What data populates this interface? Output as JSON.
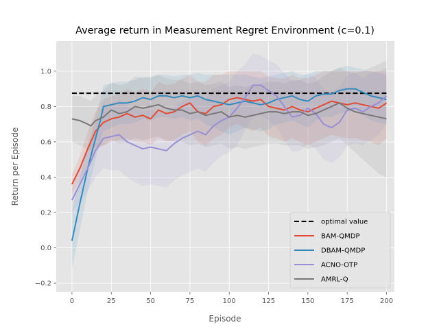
{
  "chart_data": {
    "type": "line",
    "title": "Average return in Measurement Regret Environment (c=0.1)",
    "xlabel": "Episode",
    "ylabel": "Return per Episode",
    "xlim": [
      -10,
      205
    ],
    "ylim": [
      -0.25,
      1.17
    ],
    "xticks": [
      0,
      25,
      50,
      75,
      100,
      125,
      150,
      175,
      200
    ],
    "yticks": [
      -0.2,
      0.0,
      0.2,
      0.4,
      0.6,
      0.8,
      1.0
    ],
    "xtick_labels": [
      "0",
      "25",
      "50",
      "75",
      "100",
      "125",
      "150",
      "175",
      "200"
    ],
    "ytick_labels": [
      "−0.2",
      "0.0",
      "0.2",
      "0.4",
      "0.6",
      "0.8",
      "1.0"
    ],
    "grid": true,
    "legend_position": "lower-right",
    "reference_line": {
      "name": "optimal value",
      "y": 0.875,
      "color": "#000000"
    },
    "series": [
      {
        "name": "BAM-QMDP",
        "color": "#e24a33",
        "x": [
          0,
          5,
          10,
          15,
          20,
          25,
          30,
          35,
          40,
          45,
          50,
          55,
          60,
          65,
          70,
          75,
          80,
          85,
          90,
          95,
          100,
          105,
          110,
          115,
          120,
          125,
          130,
          135,
          140,
          145,
          150,
          155,
          160,
          165,
          170,
          175,
          180,
          185,
          190,
          195,
          200
        ],
        "y": [
          0.36,
          0.45,
          0.56,
          0.66,
          0.71,
          0.73,
          0.74,
          0.76,
          0.74,
          0.75,
          0.73,
          0.78,
          0.76,
          0.77,
          0.8,
          0.82,
          0.77,
          0.76,
          0.8,
          0.81,
          0.84,
          0.85,
          0.84,
          0.83,
          0.84,
          0.8,
          0.79,
          0.78,
          0.8,
          0.78,
          0.77,
          0.79,
          0.81,
          0.83,
          0.82,
          0.81,
          0.82,
          0.81,
          0.8,
          0.79,
          0.82
        ],
        "lower": [
          0.3,
          0.38,
          0.46,
          0.55,
          0.58,
          0.6,
          0.61,
          0.62,
          0.6,
          0.6,
          0.58,
          0.62,
          0.6,
          0.61,
          0.64,
          0.66,
          0.6,
          0.58,
          0.62,
          0.64,
          0.68,
          0.7,
          0.68,
          0.66,
          0.68,
          0.63,
          0.62,
          0.6,
          0.62,
          0.6,
          0.58,
          0.6,
          0.62,
          0.64,
          0.63,
          0.62,
          0.62,
          0.61,
          0.6,
          0.58,
          0.62
        ],
        "upper": [
          0.42,
          0.52,
          0.66,
          0.77,
          0.84,
          0.86,
          0.87,
          0.9,
          0.88,
          0.9,
          0.88,
          0.94,
          0.92,
          0.93,
          0.96,
          0.98,
          0.94,
          0.94,
          0.98,
          0.98,
          1.0,
          1.0,
          1.0,
          1.0,
          1.0,
          0.97,
          0.96,
          0.96,
          0.98,
          0.96,
          0.96,
          0.98,
          1.0,
          1.0,
          1.0,
          1.0,
          1.0,
          1.0,
          1.0,
          1.0,
          1.0
        ]
      },
      {
        "name": "DBAM-QMDP",
        "color": "#348abd",
        "x": [
          0,
          5,
          10,
          15,
          18,
          20,
          25,
          30,
          35,
          40,
          45,
          50,
          55,
          60,
          65,
          70,
          75,
          80,
          85,
          90,
          95,
          100,
          105,
          110,
          115,
          120,
          125,
          130,
          135,
          140,
          145,
          150,
          155,
          160,
          165,
          170,
          175,
          180,
          185,
          190,
          195,
          200
        ],
        "y": [
          0.04,
          0.25,
          0.45,
          0.62,
          0.72,
          0.8,
          0.81,
          0.82,
          0.82,
          0.83,
          0.85,
          0.84,
          0.86,
          0.86,
          0.85,
          0.86,
          0.85,
          0.86,
          0.84,
          0.83,
          0.82,
          0.81,
          0.82,
          0.83,
          0.82,
          0.81,
          0.82,
          0.84,
          0.85,
          0.86,
          0.84,
          0.83,
          0.86,
          0.87,
          0.87,
          0.89,
          0.9,
          0.9,
          0.88,
          0.86,
          0.85,
          0.84
        ],
        "lower": [
          -0.12,
          0.1,
          0.32,
          0.5,
          0.6,
          0.66,
          0.68,
          0.7,
          0.7,
          0.71,
          0.73,
          0.72,
          0.74,
          0.74,
          0.73,
          0.74,
          0.72,
          0.73,
          0.7,
          0.68,
          0.66,
          0.64,
          0.66,
          0.68,
          0.67,
          0.66,
          0.67,
          0.7,
          0.71,
          0.72,
          0.7,
          0.68,
          0.72,
          0.74,
          0.74,
          0.76,
          0.77,
          0.78,
          0.75,
          0.72,
          0.71,
          0.7
        ],
        "upper": [
          0.2,
          0.4,
          0.58,
          0.74,
          0.84,
          0.92,
          0.93,
          0.94,
          0.94,
          0.95,
          0.97,
          0.96,
          0.98,
          0.98,
          0.97,
          0.98,
          0.98,
          0.99,
          0.98,
          0.98,
          0.98,
          0.98,
          0.98,
          0.98,
          0.97,
          0.96,
          0.97,
          0.98,
          0.99,
          1.0,
          0.98,
          0.98,
          1.0,
          1.0,
          1.0,
          1.02,
          1.03,
          1.02,
          1.01,
          1.0,
          0.99,
          0.98
        ]
      },
      {
        "name": "ACNO-OTP",
        "color": "#988ed5",
        "x": [
          0,
          5,
          10,
          15,
          20,
          25,
          30,
          35,
          40,
          45,
          50,
          55,
          60,
          65,
          70,
          75,
          80,
          85,
          90,
          95,
          100,
          105,
          110,
          115,
          120,
          125,
          130,
          135,
          140,
          145,
          150,
          155,
          160,
          165,
          170,
          175,
          180,
          185,
          190,
          195,
          200
        ],
        "y": [
          0.27,
          0.36,
          0.45,
          0.55,
          0.62,
          0.63,
          0.64,
          0.6,
          0.58,
          0.56,
          0.57,
          0.56,
          0.55,
          0.59,
          0.62,
          0.64,
          0.66,
          0.64,
          0.69,
          0.72,
          0.74,
          0.79,
          0.85,
          0.92,
          0.92,
          0.89,
          0.86,
          0.8,
          0.74,
          0.75,
          0.79,
          0.76,
          0.7,
          0.68,
          0.71,
          0.78,
          0.79,
          0.77,
          0.8,
          0.82,
          0.86
        ],
        "lower": [
          0.2,
          0.26,
          0.32,
          0.4,
          0.45,
          0.44,
          0.44,
          0.4,
          0.37,
          0.35,
          0.36,
          0.35,
          0.34,
          0.38,
          0.41,
          0.43,
          0.45,
          0.43,
          0.48,
          0.52,
          0.54,
          0.58,
          0.66,
          0.74,
          0.75,
          0.72,
          0.68,
          0.61,
          0.54,
          0.55,
          0.59,
          0.56,
          0.5,
          0.48,
          0.51,
          0.58,
          0.59,
          0.58,
          0.61,
          0.64,
          0.7
        ],
        "upper": [
          0.34,
          0.46,
          0.58,
          0.7,
          0.79,
          0.82,
          0.84,
          0.8,
          0.79,
          0.77,
          0.78,
          0.77,
          0.76,
          0.8,
          0.83,
          0.85,
          0.87,
          0.85,
          0.9,
          0.92,
          0.94,
          1.0,
          1.04,
          1.1,
          1.09,
          1.06,
          1.04,
          0.99,
          0.94,
          0.95,
          0.99,
          0.96,
          0.9,
          0.88,
          0.91,
          0.98,
          0.99,
          0.96,
          0.99,
          1.0,
          1.02
        ]
      },
      {
        "name": "AMRL-Q",
        "color": "#777777",
        "x": [
          0,
          5,
          10,
          12,
          15,
          20,
          25,
          30,
          35,
          40,
          45,
          50,
          55,
          60,
          65,
          70,
          75,
          80,
          85,
          90,
          95,
          100,
          105,
          110,
          115,
          120,
          125,
          130,
          135,
          140,
          145,
          150,
          155,
          160,
          165,
          170,
          175,
          180,
          185,
          190,
          195,
          200
        ],
        "y": [
          0.73,
          0.72,
          0.7,
          0.69,
          0.72,
          0.74,
          0.78,
          0.76,
          0.77,
          0.8,
          0.79,
          0.8,
          0.81,
          0.79,
          0.78,
          0.78,
          0.76,
          0.77,
          0.75,
          0.76,
          0.77,
          0.74,
          0.75,
          0.74,
          0.75,
          0.76,
          0.77,
          0.77,
          0.76,
          0.77,
          0.77,
          0.75,
          0.76,
          0.78,
          0.8,
          0.82,
          0.79,
          0.77,
          0.76,
          0.75,
          0.74,
          0.73
        ],
        "lower": [
          0.6,
          0.58,
          0.56,
          0.55,
          0.57,
          0.58,
          0.61,
          0.59,
          0.6,
          0.62,
          0.61,
          0.62,
          0.63,
          0.61,
          0.6,
          0.6,
          0.58,
          0.59,
          0.57,
          0.58,
          0.59,
          0.56,
          0.57,
          0.56,
          0.57,
          0.58,
          0.59,
          0.59,
          0.58,
          0.58,
          0.58,
          0.56,
          0.57,
          0.58,
          0.6,
          0.62,
          0.58,
          0.54,
          0.5,
          0.46,
          0.42,
          0.4
        ],
        "upper": [
          0.86,
          0.86,
          0.84,
          0.83,
          0.86,
          0.89,
          0.94,
          0.92,
          0.93,
          0.97,
          0.96,
          0.97,
          0.98,
          0.96,
          0.95,
          0.95,
          0.93,
          0.94,
          0.92,
          0.93,
          0.94,
          0.91,
          0.92,
          0.91,
          0.92,
          0.93,
          0.94,
          0.94,
          0.93,
          0.95,
          0.95,
          0.93,
          0.94,
          0.97,
          1.0,
          1.02,
          1.0,
          0.99,
          1.0,
          1.02,
          1.04,
          1.06
        ]
      }
    ]
  }
}
